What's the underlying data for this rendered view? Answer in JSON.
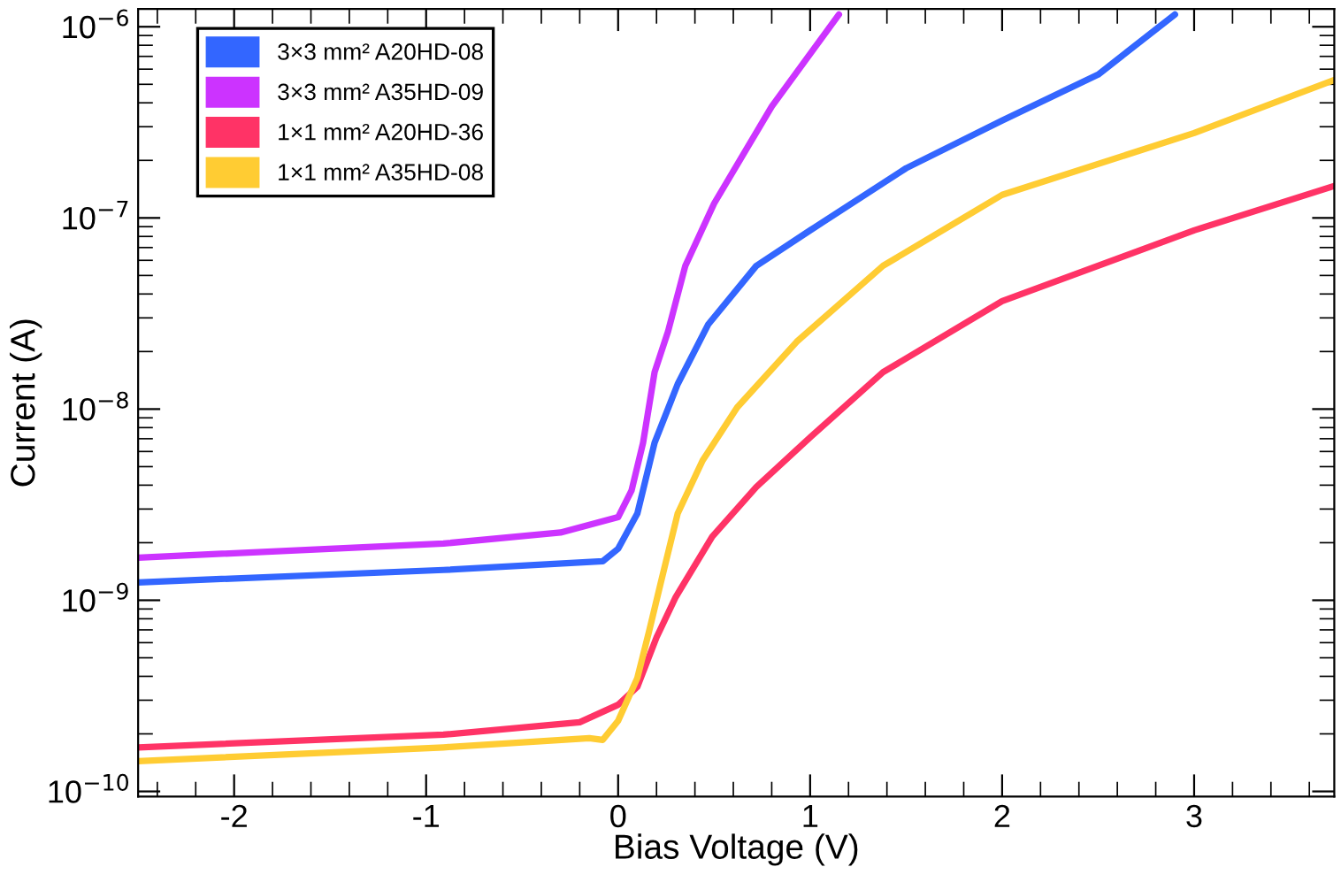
{
  "chart_data": {
    "type": "line",
    "xlabel": "Bias Voltage (V)",
    "ylabel": "Current (A)",
    "log": "y",
    "xlim": [
      -2.5,
      3.73
    ],
    "ylim": [
      9.4e-11,
      1.24e-06
    ],
    "xticks": [
      -2,
      -1,
      0,
      1,
      2,
      3
    ],
    "yticks": [
      {
        "value": 1e-10,
        "label": "10$^{−10}$"
      },
      {
        "value": 1e-09,
        "label": "10$^{−9}$"
      },
      {
        "value": 1e-08,
        "label": "10$^{−8}$"
      },
      {
        "value": 1e-07,
        "label": "10$^{−7}$"
      },
      {
        "value": 1e-06,
        "label": "10$^{−6}$"
      }
    ],
    "grid": false,
    "legend": "top left",
    "marker": "none",
    "line_style": "solid",
    "series": [
      {
        "name": "3×3 mm² A20HD-08",
        "color": "#3366ff",
        "x": [
          -2.5,
          -0.91,
          -0.08,
          0,
          0.1,
          0.19,
          0.31,
          0.47,
          0.72,
          1.0,
          1.5,
          2.0,
          2.5,
          2.9
        ],
        "values": [
          1.24e-09,
          1.44e-09,
          1.6e-09,
          1.86e-09,
          2.84e-09,
          6.67e-09,
          1.35e-08,
          2.78e-08,
          5.62e-08,
          8.61e-08,
          1.82e-07,
          3.23e-07,
          5.62e-07,
          1.16e-06
        ]
      },
      {
        "name": "3×3 mm² A35HD-09",
        "color": "#cc33ff",
        "x": [
          -2.5,
          -0.91,
          -0.3,
          0,
          0.07,
          0.13,
          0.19,
          0.26,
          0.35,
          0.5,
          0.8,
          1.15
        ],
        "values": [
          1.67e-09,
          1.98e-09,
          2.26e-09,
          2.72e-09,
          3.75e-09,
          6.67e-09,
          1.56e-08,
          2.55e-08,
          5.62e-08,
          1.19e-07,
          3.83e-07,
          1.16e-06
        ]
      },
      {
        "name": "1×1 mm² A20HD-36",
        "color": "#ff3366",
        "x": [
          -2.5,
          -0.91,
          -0.2,
          0,
          0.1,
          0.2,
          0.3,
          0.49,
          0.72,
          1.0,
          1.38,
          2.0,
          3.0,
          3.73
        ],
        "values": [
          1.7e-10,
          1.98e-10,
          2.3e-10,
          2.84e-10,
          3.52e-10,
          6.39e-10,
          1.04e-09,
          2.15e-09,
          3.92e-09,
          7.11e-09,
          1.56e-08,
          3.67e-08,
          8.61e-08,
          1.47e-07
        ]
      },
      {
        "name": "1×1 mm² A35HD-08",
        "color": "#ffcc33",
        "x": [
          -2.5,
          -0.91,
          -0.15,
          -0.08,
          0,
          0.1,
          0.16,
          0.22,
          0.31,
          0.44,
          0.62,
          0.93,
          1.38,
          2.0,
          3.0,
          3.73
        ],
        "values": [
          1.44e-10,
          1.7e-10,
          1.9e-10,
          1.86e-10,
          2.34e-10,
          3.92e-10,
          6.81e-10,
          1.21e-09,
          2.84e-09,
          5.38e-09,
          1.02e-08,
          2.25e-08,
          5.62e-08,
          1.32e-07,
          2.78e-07,
          5.27e-07
        ]
      }
    ]
  }
}
